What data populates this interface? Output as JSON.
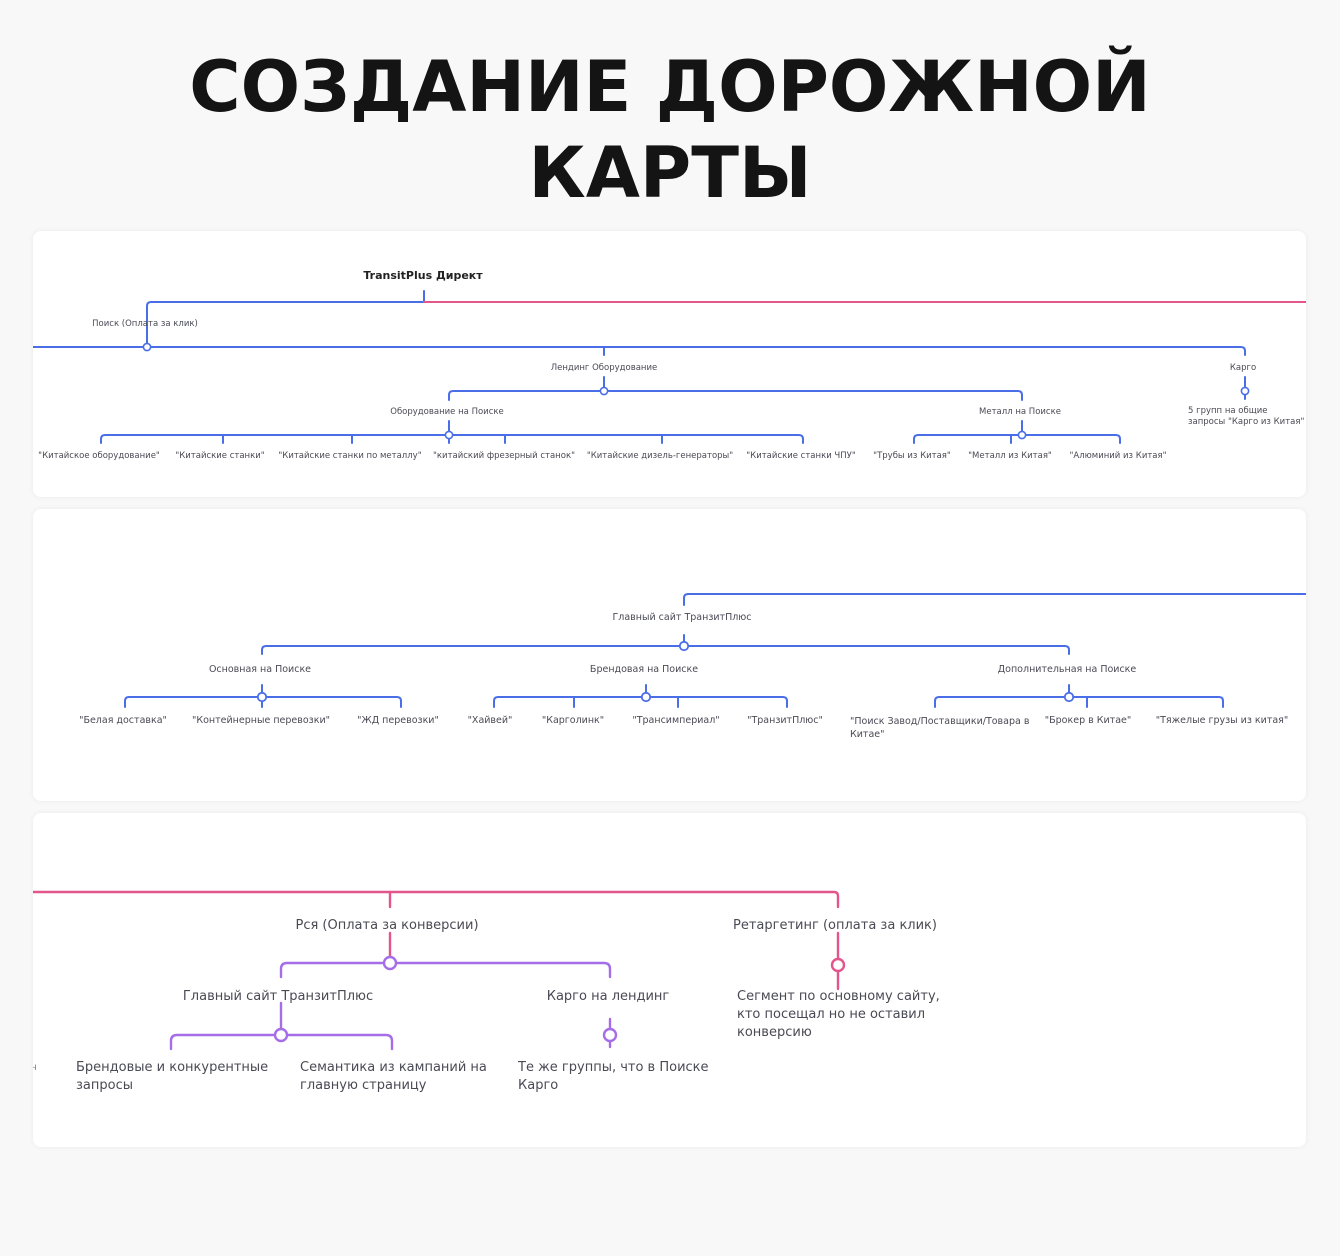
{
  "title": {
    "line1": "СОЗДАНИЕ ДОРОЖНОЙ",
    "line2": "КАРТЫ"
  },
  "colors": {
    "blue": "#4a6ee8",
    "pink": "#e2568c",
    "purple": "#a56ee8"
  },
  "section1": {
    "root": "TransitPlus Директ",
    "search": "Поиск (Оплата за клик)",
    "landing": "Лендинг Оборудование",
    "cargo": "Карго",
    "cargo_note": "5 групп на общие запросы \"Карго из Китая\"",
    "equipment": "Оборудование на Поиске",
    "metal": "Металл на Поиске",
    "equipment_items": [
      "\"Китайское оборудование\"",
      "\"Китайские станки\"",
      "\"Китайские станки по металлу\"",
      "\"китайский фрезерный станок\"",
      "\"Китайские дизель-генераторы\"",
      "\"Китайские станки ЧПУ\""
    ],
    "metal_items": [
      "\"Трубы из Китая\"",
      "\"Металл из Китая\"",
      "\"Алюминий из Китая\""
    ]
  },
  "section2": {
    "root": "Главный сайт ТранзитПлюс",
    "main": "Основная на Поиске",
    "brand": "Брендовая на Поиске",
    "extra": "Дополнительная на Поиске",
    "main_items": [
      "\"Белая доставка\"",
      "\"Контейнерные перевозки\"",
      "\"ЖД перевозки\""
    ],
    "brand_items": [
      "\"Хайвей\"",
      "\"Карголинк\"",
      "\"Трансимпериал\"",
      "\"ТранзитПлюс\""
    ],
    "extra_items": [
      "\"Поиск Завод/Поставщики/Товара в Китае\"",
      "\"Брокер в Китае\"",
      "\"Тяжелые грузы из китая\""
    ]
  },
  "section3": {
    "rsya": "Рся (Оплата за конверсии)",
    "retarget": "Ретаргетинг (оплата за клик)",
    "main_site": "Главный сайт ТранзитПлюс",
    "cargo_landing": "Карго на лендинг",
    "brand_queries": "Брендовые и конкурентные запросы",
    "semantics": "Семантика из кампаний на главную страницу",
    "same_groups": "Те же группы, что в Поиске Карго",
    "segment": "Сегмент по основному сайту, кто посещал но не оставил конверсию",
    "edge_mark": "ч"
  }
}
